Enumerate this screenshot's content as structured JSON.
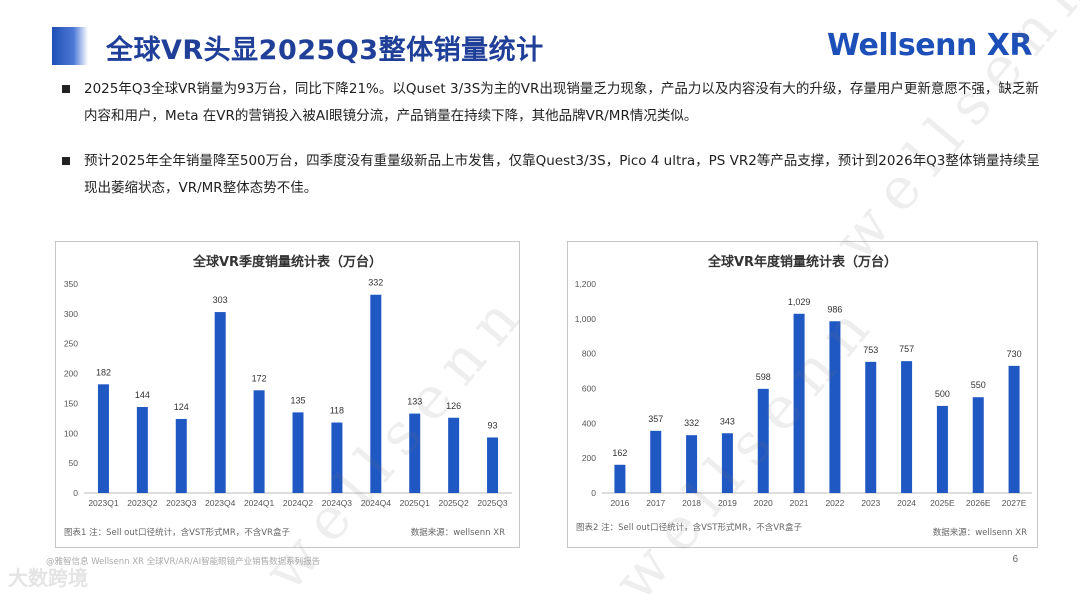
{
  "header": {
    "title": "全球VR头显2025Q3整体销量统计",
    "logo": "Wellsenn XR"
  },
  "bullets": [
    "2025年Q3全球VR销量为93万台，同比下降21%。以Quset 3/3S为主的VR出现销量乏力现象，产品力以及内容没有大的升级，存量用户更新意愿不强，缺乏新内容和用户，Meta 在VR的营销投入被AI眼镜分流，产品销量在持续下降，其他品牌VR/MR情况类似。",
    "预计2025年全年销量降至500万台，四季度没有重量级新品上市发售，仅靠Quest3/3S，Pico 4 ultra，PS VR2等产品支撑，预计到2026年Q3整体销量持续呈现出萎缩状态，VR/MR整体态势不佳。"
  ],
  "chart_data": [
    {
      "type": "bar",
      "title": "全球VR季度销量统计表（万台）",
      "categories": [
        "2023Q1",
        "2023Q2",
        "2023Q3",
        "2023Q4",
        "2024Q1",
        "2024Q2",
        "2024Q3",
        "2024Q4",
        "2025Q1",
        "2025Q2",
        "2025Q3"
      ],
      "values": [
        182,
        144,
        124,
        303,
        172,
        135,
        118,
        332,
        133,
        126,
        93
      ],
      "value_labels": [
        "182",
        "144",
        "124",
        "303",
        "172",
        "135",
        "118",
        "332",
        "133",
        "126",
        "93"
      ],
      "ylim": [
        0,
        350
      ],
      "yticks": [
        "0",
        "50",
        "100",
        "150",
        "200",
        "250",
        "300",
        "350"
      ],
      "grid": false,
      "bar_color": "#1f57c3",
      "note": "图表1  注：Sell out口径统计，含VST形式MR，不含VR盒子",
      "source": "数据来源：wellsenn XR"
    },
    {
      "type": "bar",
      "title": "全球VR年度销量统计表（万台）",
      "categories": [
        "2016",
        "2017",
        "2018",
        "2019",
        "2020",
        "2021",
        "2022",
        "2023",
        "2024",
        "2025E",
        "2026E",
        "2027E"
      ],
      "values": [
        162,
        357,
        332,
        343,
        598,
        1029,
        986,
        753,
        757,
        500,
        550,
        730
      ],
      "value_labels": [
        "162",
        "357",
        "332",
        "343",
        "598",
        "1,029",
        "986",
        "753",
        "757",
        "500",
        "550",
        "730"
      ],
      "ylim": [
        0,
        1200
      ],
      "yticks": [
        "0",
        "200",
        "400",
        "600",
        "800",
        "1,000",
        "1,200"
      ],
      "grid": false,
      "bar_color": "#1f57c3",
      "note": "图表2  注：Sell out口径统计，含VST形式MR，不含VR盒子",
      "source": "数据来源：wellsenn XR"
    }
  ],
  "footer": {
    "source_line": "@雅智信息 Wellsenn XR 全球VR/AR/AI智能眼镜产业销售数据系列报告",
    "page": "6",
    "wm_brand": "大数跨境"
  }
}
